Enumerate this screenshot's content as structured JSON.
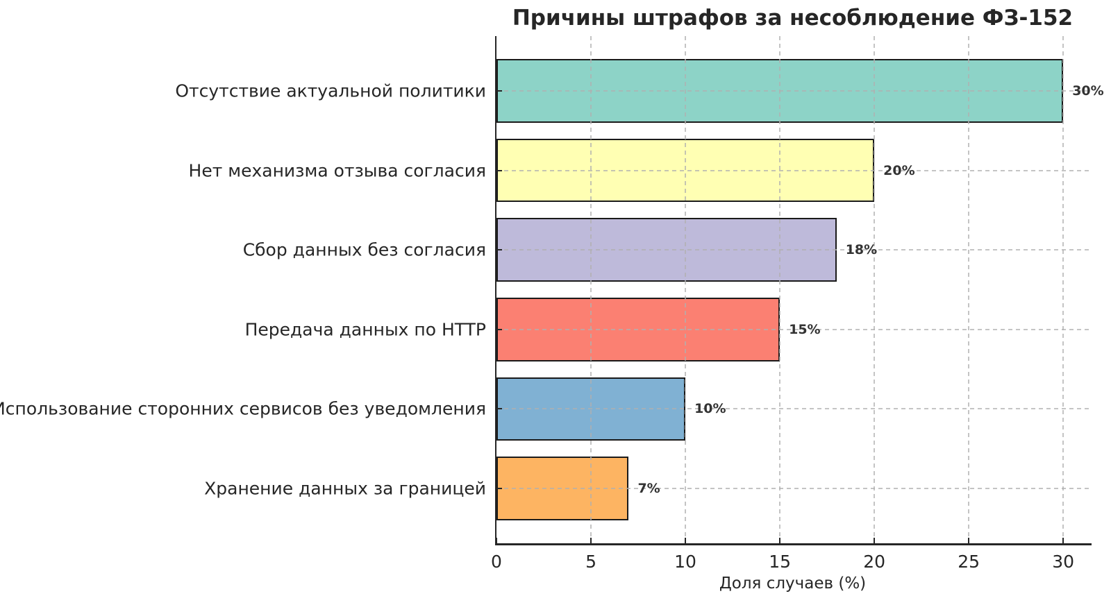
{
  "chart_data": {
    "type": "bar",
    "orientation": "horizontal",
    "title": "Причины штрафов за несоблюдение ФЗ-152",
    "xlabel": "Доля случаев (%)",
    "categories": [
      "Отсутствие актуальной политики",
      "Нет механизма отзыва согласия",
      "Сбор данных без согласия",
      "Передача данных по HTTP",
      "Использование сторонних сервисов без уведомления",
      "Хранение данных за границей"
    ],
    "values": [
      30,
      20,
      18,
      15,
      10,
      7
    ],
    "value_labels": [
      "30%",
      "20%",
      "18%",
      "15%",
      "10%",
      "7%"
    ],
    "bar_colors": [
      "#8dd3c7",
      "#ffffb3",
      "#bebada",
      "#fb8072",
      "#80b1d3",
      "#fdb462"
    ],
    "bar_edge_color": "#1a1a1a",
    "x_ticks": [
      0,
      5,
      10,
      15,
      20,
      25,
      30
    ],
    "xlim": [
      0,
      31.5
    ],
    "grid": "dashed",
    "grid_color": "#b0b0b0",
    "legend": "none"
  }
}
